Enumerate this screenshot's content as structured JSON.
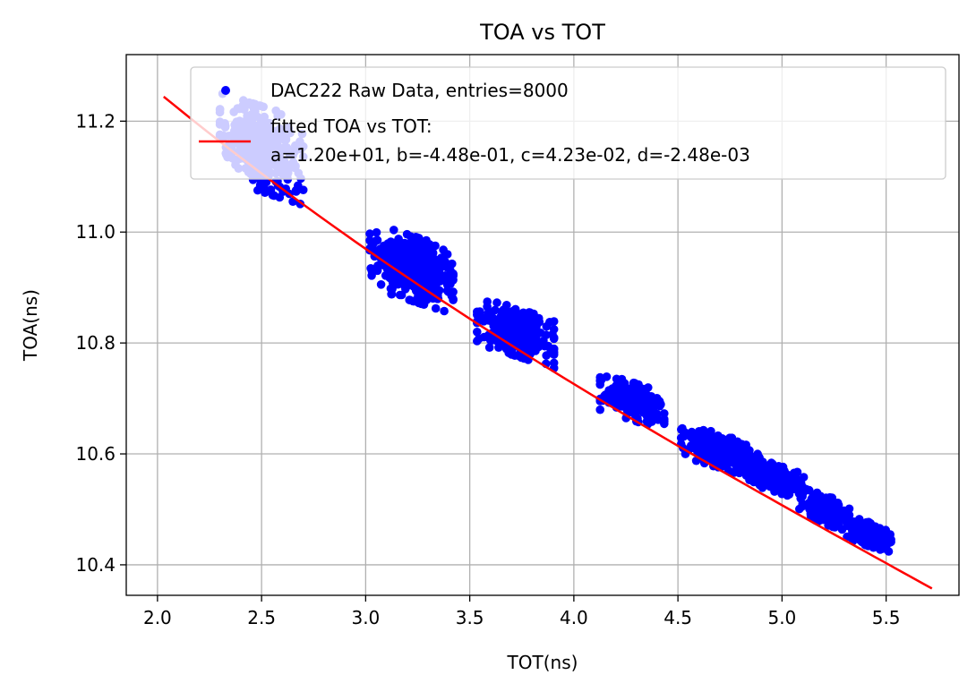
{
  "chart_data": {
    "type": "scatter",
    "title": "TOA vs TOT",
    "xlabel": "TOT(ns)",
    "ylabel": "TOA(ns)",
    "xlim": [
      1.85,
      5.85
    ],
    "ylim": [
      10.345,
      11.32
    ],
    "xticks": [
      2.0,
      2.5,
      3.0,
      3.5,
      4.0,
      4.5,
      5.0,
      5.5
    ],
    "xtick_labels": [
      "2.0",
      "2.5",
      "3.0",
      "3.5",
      "4.0",
      "4.5",
      "5.0",
      "5.5"
    ],
    "yticks": [
      10.4,
      10.6,
      10.8,
      11.0,
      11.2
    ],
    "ytick_labels": [
      "10.4",
      "10.6",
      "10.8",
      "11.0",
      "11.2"
    ],
    "grid": true,
    "legend_position": "top-right",
    "series": [
      {
        "name": "DAC222 Raw Data, entries=8000",
        "kind": "scatter",
        "color": "#0000ff",
        "clusters": [
          {
            "x_center": 2.5,
            "y_center": 11.15,
            "x_spread": 0.13,
            "y_spread": 0.05,
            "count": 380
          },
          {
            "x_center": 3.22,
            "y_center": 10.935,
            "x_spread": 0.13,
            "y_spread": 0.038,
            "count": 460
          },
          {
            "x_center": 3.72,
            "y_center": 10.82,
            "x_spread": 0.12,
            "y_spread": 0.028,
            "count": 320
          },
          {
            "x_center": 4.28,
            "y_center": 10.695,
            "x_spread": 0.1,
            "y_spread": 0.022,
            "count": 220
          },
          {
            "x_center": 4.7,
            "y_center": 10.605,
            "x_spread": 0.12,
            "y_spread": 0.02,
            "count": 260
          },
          {
            "x_center": 4.95,
            "y_center": 10.56,
            "x_spread": 0.1,
            "y_spread": 0.017,
            "count": 220
          },
          {
            "x_center": 5.2,
            "y_center": 10.5,
            "x_spread": 0.08,
            "y_spread": 0.017,
            "count": 200
          },
          {
            "x_center": 5.42,
            "y_center": 10.455,
            "x_spread": 0.07,
            "y_spread": 0.014,
            "count": 180
          }
        ]
      },
      {
        "name": "fitted TOA vs TOT:",
        "name_line2": "a=1.20e+01, b=-4.48e-01, c=4.23e-02, d=-2.48e-03",
        "kind": "line",
        "color": "#ff0000",
        "x_range": [
          2.03,
          5.72
        ],
        "coefficients": {
          "a": 12.0,
          "b": -0.448,
          "c": 0.0423,
          "d": -0.00248
        }
      }
    ]
  }
}
